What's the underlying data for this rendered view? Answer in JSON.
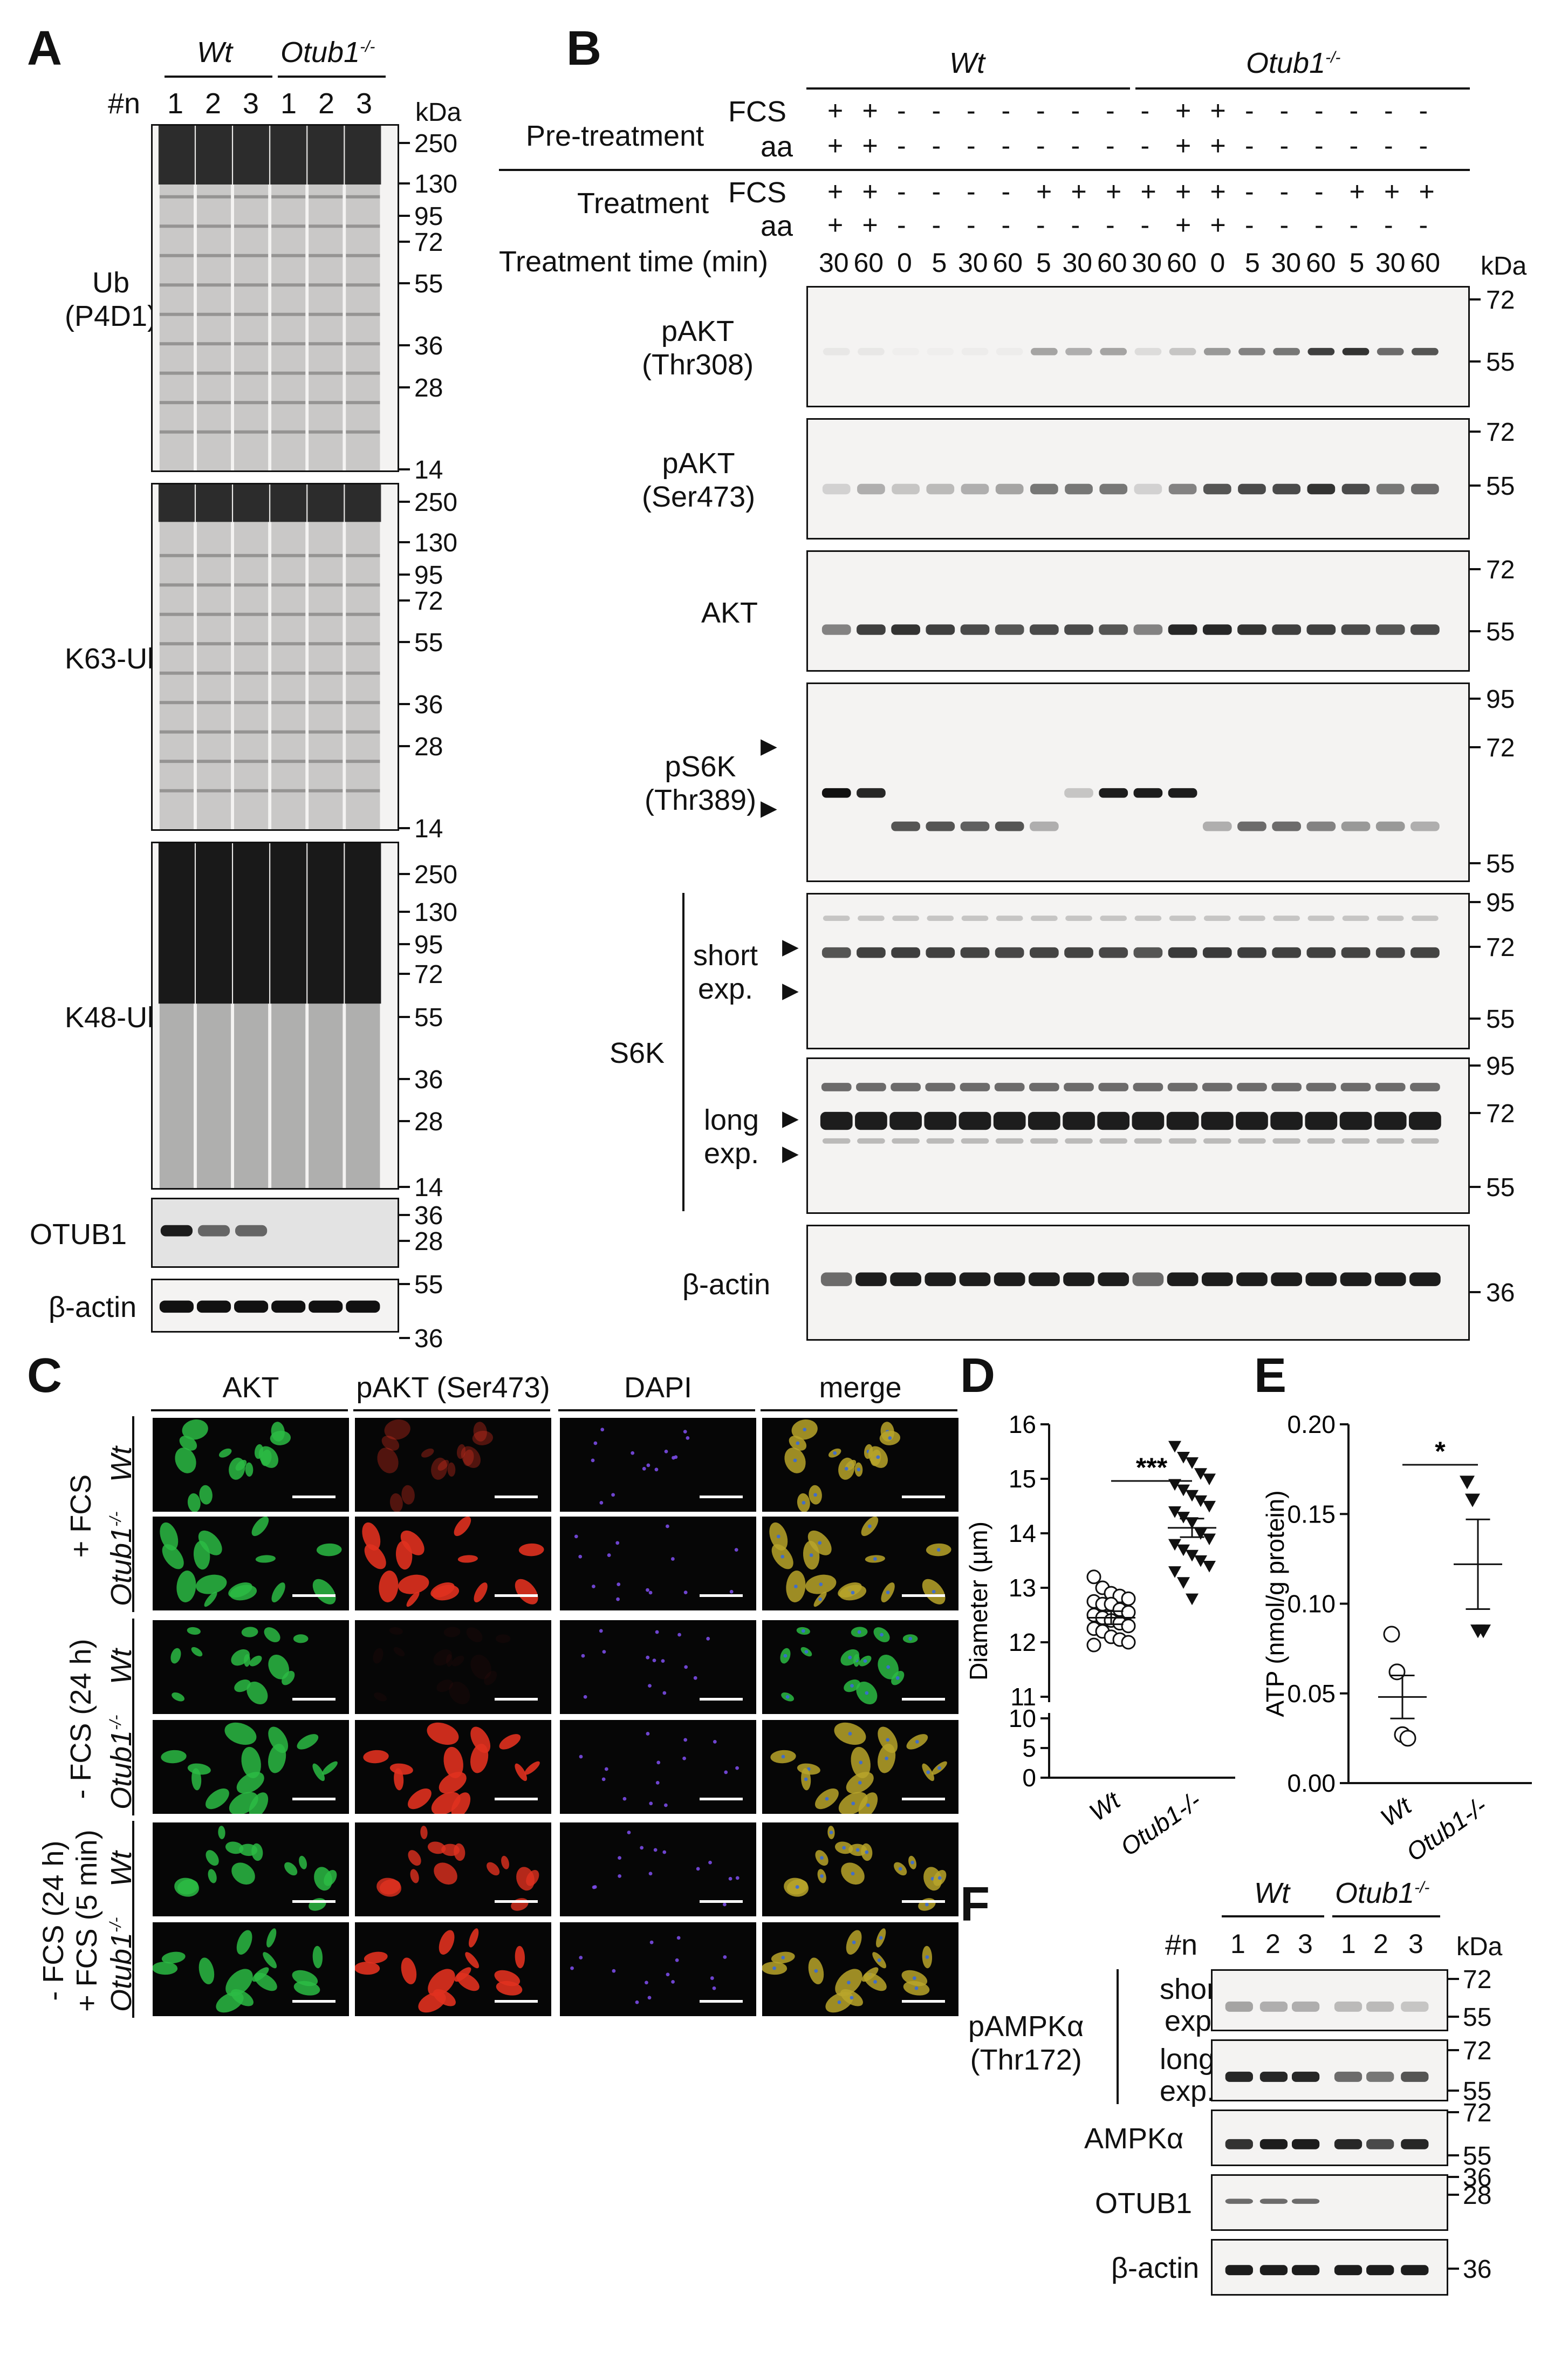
{
  "panels": {
    "A": "A",
    "B": "B",
    "C": "C",
    "D": "D",
    "E": "E",
    "F": "F"
  },
  "panelA": {
    "group_wt": "Wt",
    "group_ko": "Otub1",
    "ko_sup": "-/-",
    "n_label": "#n",
    "lanes": [
      "1",
      "2",
      "3",
      "1",
      "2",
      "3"
    ],
    "kda": "kDa",
    "blots": [
      {
        "label": "Ub\n(P4D1)",
        "markers": [
          "250",
          "130",
          "95",
          "72",
          "55",
          "36",
          "28",
          "14"
        ]
      },
      {
        "label": "K63-Ub",
        "markers": [
          "250",
          "130",
          "95",
          "72",
          "55",
          "36",
          "28",
          "14"
        ]
      },
      {
        "label": "K48-Ub",
        "markers": [
          "250",
          "130",
          "95",
          "72",
          "55",
          "36",
          "28",
          "14"
        ]
      },
      {
        "label": "OTUB1",
        "markers": [
          "36",
          "28"
        ]
      },
      {
        "label": "β-actin",
        "markers": [
          "55",
          "36"
        ]
      }
    ]
  },
  "panelB": {
    "group_wt": "Wt",
    "group_ko": "Otub1",
    "ko_sup": "-/-",
    "pretreatment_label": "Pre-treatment",
    "treatment_label": "Treatment",
    "time_label": "Treatment time (min)",
    "fcs": "FCS",
    "aa": "aa",
    "kda": "kDa",
    "pre_fcs": [
      "+",
      "+",
      "-",
      "-",
      "-",
      "-",
      "-",
      "-",
      "-",
      "-",
      "+",
      "+",
      "-",
      "-",
      "-",
      "-",
      "-",
      "-"
    ],
    "pre_aa": [
      "+",
      "+",
      "-",
      "-",
      "-",
      "-",
      "-",
      "-",
      "-",
      "-",
      "+",
      "+",
      "-",
      "-",
      "-",
      "-",
      "-",
      "-"
    ],
    "treat_fcs": [
      "+",
      "+",
      "-",
      "-",
      "-",
      "-",
      "+",
      "+",
      "+",
      "+",
      "+",
      "+",
      "-",
      "-",
      "-",
      "+",
      "+",
      "+"
    ],
    "treat_aa": [
      "+",
      "+",
      "-",
      "-",
      "-",
      "-",
      "-",
      "-",
      "-",
      "-",
      "+",
      "+",
      "-",
      "-",
      "-",
      "-",
      "-",
      "-"
    ],
    "times": [
      "30",
      "60",
      "0",
      "5",
      "30",
      "60",
      "5",
      "30",
      "60",
      "30",
      "60",
      "0",
      "5",
      "30",
      "60",
      "5",
      "30",
      "60"
    ],
    "blots": [
      {
        "label": "pAKT\n(Thr308)",
        "markers": [
          "72",
          "55"
        ]
      },
      {
        "label": "pAKT\n(Ser473)",
        "markers": [
          "72",
          "55"
        ]
      },
      {
        "label": "AKT",
        "markers": [
          "72",
          "55"
        ]
      },
      {
        "label": "pS6K\n(Thr389)",
        "markers": [
          "95",
          "72",
          "55"
        ]
      },
      {
        "label": "short\nexp.",
        "markers": [
          "95",
          "72",
          "55"
        ]
      },
      {
        "label": "long\nexp.",
        "markers": [
          "95",
          "72",
          "55"
        ]
      },
      {
        "label": "β-actin",
        "markers": [
          "36"
        ]
      }
    ],
    "s6k_label": "S6K"
  },
  "panelC": {
    "columns": [
      "AKT",
      "pAKT (Ser473)",
      "DAPI",
      "merge"
    ],
    "conditions": [
      "+ FCS",
      "- FCS (24 h)",
      "- FCS (24 h)\n+ FCS (5 min)"
    ],
    "rows": [
      "Wt",
      "Otub1",
      "Wt",
      "Otub1",
      "Wt",
      "Otub1"
    ],
    "ko_sup": "-/-"
  },
  "chart_data": [
    {
      "type": "scatter",
      "panel": "D",
      "ylabel": "Diameter (µm)",
      "categories": [
        "Wt",
        "Otub1-/-"
      ],
      "ylim": [
        0,
        16
      ],
      "yticks": [
        "0",
        "5",
        "10",
        "11",
        "12",
        "13",
        "14",
        "15",
        "16"
      ],
      "significance": "***",
      "series": [
        {
          "name": "Wt",
          "mean": 12.45,
          "sem": 0.12,
          "values": [
            13.2,
            13.0,
            12.9,
            12.85,
            12.8,
            12.75,
            12.7,
            12.7,
            12.6,
            12.55,
            12.5,
            12.45,
            12.4,
            12.35,
            12.3,
            12.25,
            12.2,
            12.1,
            12.05,
            12.0,
            11.95
          ]
        },
        {
          "name": "Otub1-/-",
          "mean": 14.1,
          "sem": 0.17,
          "values": [
            15.6,
            15.4,
            15.3,
            15.1,
            15.0,
            14.9,
            14.8,
            14.7,
            14.6,
            14.5,
            14.4,
            14.3,
            14.2,
            14.0,
            13.9,
            13.8,
            13.7,
            13.6,
            13.5,
            13.4,
            13.3,
            13.1,
            12.8
          ]
        }
      ]
    },
    {
      "type": "scatter",
      "panel": "E",
      "ylabel": "ATP (nmol/g protein)",
      "categories": [
        "Wt",
        "Otub1-/-"
      ],
      "ylim": [
        0,
        0.2
      ],
      "yticks": [
        "0.00",
        "0.05",
        "0.10",
        "0.15",
        "0.20"
      ],
      "significance": "*",
      "series": [
        {
          "name": "Wt",
          "mean": 0.048,
          "sem": 0.012,
          "values": [
            0.083,
            0.062,
            0.027,
            0.025
          ]
        },
        {
          "name": "Otub1-/-",
          "mean": 0.122,
          "sem": 0.025,
          "values": [
            0.168,
            0.158,
            0.085,
            0.085
          ]
        }
      ]
    }
  ],
  "panelF": {
    "group_wt": "Wt",
    "group_ko": "Otub1",
    "ko_sup": "-/-",
    "n_label": "#n",
    "lanes": [
      "1",
      "2",
      "3",
      "1",
      "2",
      "3"
    ],
    "kda": "kDa",
    "pampk_label": "pAMPKα\n(Thr172)",
    "blots": [
      {
        "label": "short\nexp.",
        "markers": [
          "72",
          "55"
        ]
      },
      {
        "label": "long\nexp.",
        "markers": [
          "72",
          "55"
        ]
      },
      {
        "label": "AMPKα",
        "markers": [
          "72",
          "55"
        ]
      },
      {
        "label": "OTUB1",
        "markers": [
          "36",
          "28"
        ]
      },
      {
        "label": "β-actin",
        "markers": [
          "36"
        ]
      }
    ]
  }
}
